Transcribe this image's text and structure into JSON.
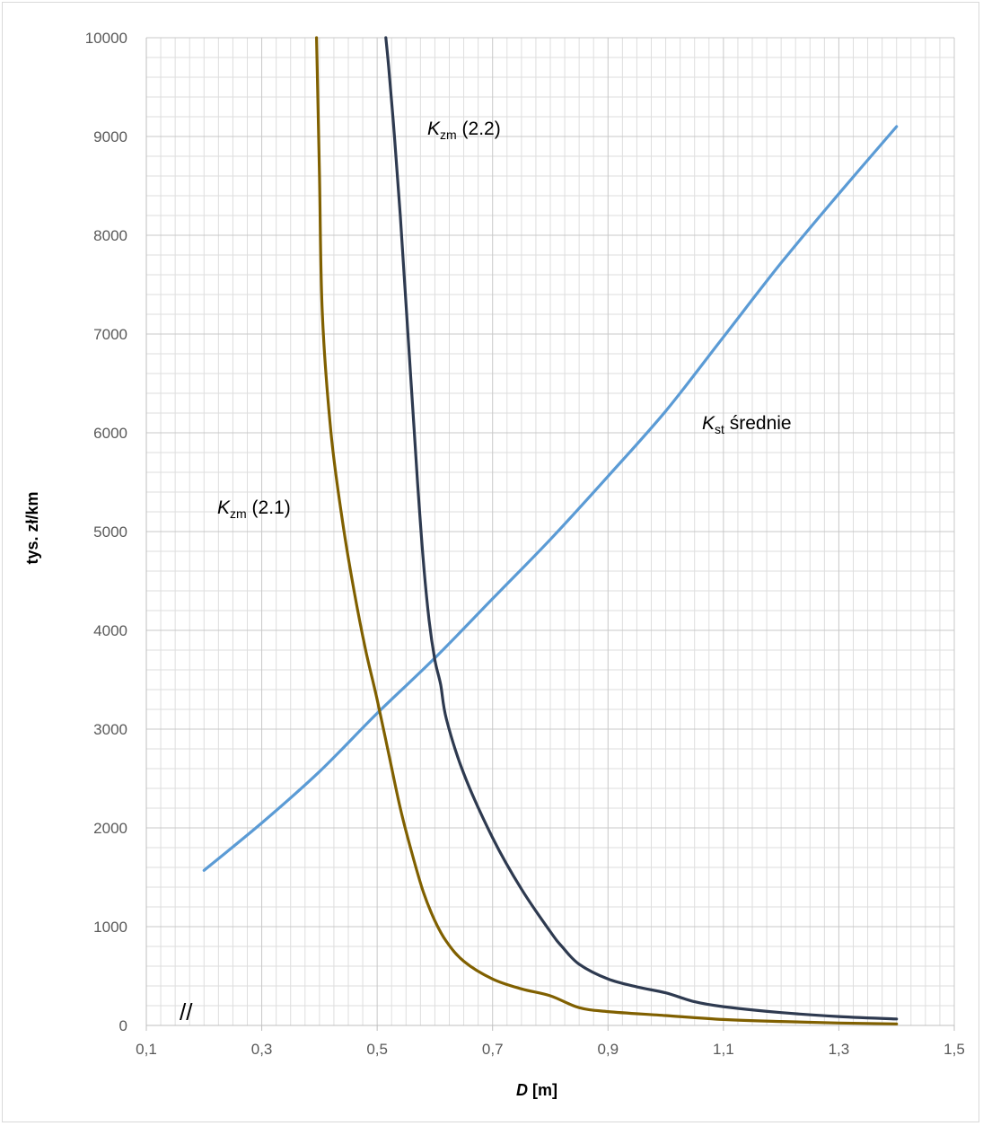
{
  "chart_data": {
    "type": "line",
    "xlabel_main": "D",
    "xlabel_unit": " [m]",
    "ylabel": "tys. zł/km",
    "xlim": [
      0.1,
      1.5
    ],
    "ylim": [
      0,
      10000
    ],
    "x_ticks": [
      "0,1",
      "0,3",
      "0,5",
      "0,7",
      "0,9",
      "1,1",
      "1,3",
      "1,5"
    ],
    "y_ticks": [
      "0",
      "1000",
      "2000",
      "3000",
      "4000",
      "5000",
      "6000",
      "7000",
      "8000",
      "9000",
      "10000"
    ],
    "grid": true,
    "axis_break": "//",
    "series": [
      {
        "name_main": "K",
        "name_sub": "st",
        "name_rest": " średnie",
        "color": "#5b9bd5",
        "x": [
          0.2,
          0.3,
          0.4,
          0.5,
          0.6,
          0.7,
          0.8,
          0.9,
          1.0,
          1.1,
          1.2,
          1.3,
          1.4
        ],
        "y": [
          1570,
          2050,
          2570,
          3160,
          3720,
          4320,
          4920,
          5560,
          6220,
          6970,
          7720,
          8420,
          9100
        ]
      },
      {
        "name_main": "K",
        "name_sub": "zm",
        "name_rest": " (2.1)",
        "color": "#806000",
        "x": [
          0.395,
          0.4,
          0.405,
          0.42,
          0.44,
          0.46,
          0.48,
          0.5,
          0.52,
          0.54,
          0.56,
          0.58,
          0.6,
          0.62,
          0.65,
          0.7,
          0.75,
          0.8,
          0.85,
          0.9,
          1.0,
          1.1,
          1.2,
          1.3,
          1.4
        ],
        "y": [
          10000,
          8600,
          7200,
          6000,
          5100,
          4400,
          3800,
          3300,
          2750,
          2200,
          1750,
          1350,
          1060,
          850,
          650,
          470,
          370,
          300,
          180,
          140,
          100,
          60,
          40,
          25,
          15
        ]
      },
      {
        "name_main": "K",
        "name_sub": "zm",
        "name_rest": " (2.2)",
        "color": "#2e3a50",
        "x": [
          0.515,
          0.52,
          0.53,
          0.54,
          0.55,
          0.56,
          0.57,
          0.58,
          0.59,
          0.6,
          0.61,
          0.62,
          0.65,
          0.7,
          0.75,
          0.8,
          0.82,
          0.85,
          0.9,
          0.95,
          1.0,
          1.05,
          1.1,
          1.2,
          1.3,
          1.4
        ],
        "y": [
          10000,
          9700,
          9000,
          8200,
          7300,
          6400,
          5500,
          4700,
          4100,
          3700,
          3450,
          3100,
          2550,
          1900,
          1380,
          950,
          800,
          620,
          470,
          390,
          330,
          240,
          190,
          130,
          90,
          65
        ]
      }
    ]
  }
}
